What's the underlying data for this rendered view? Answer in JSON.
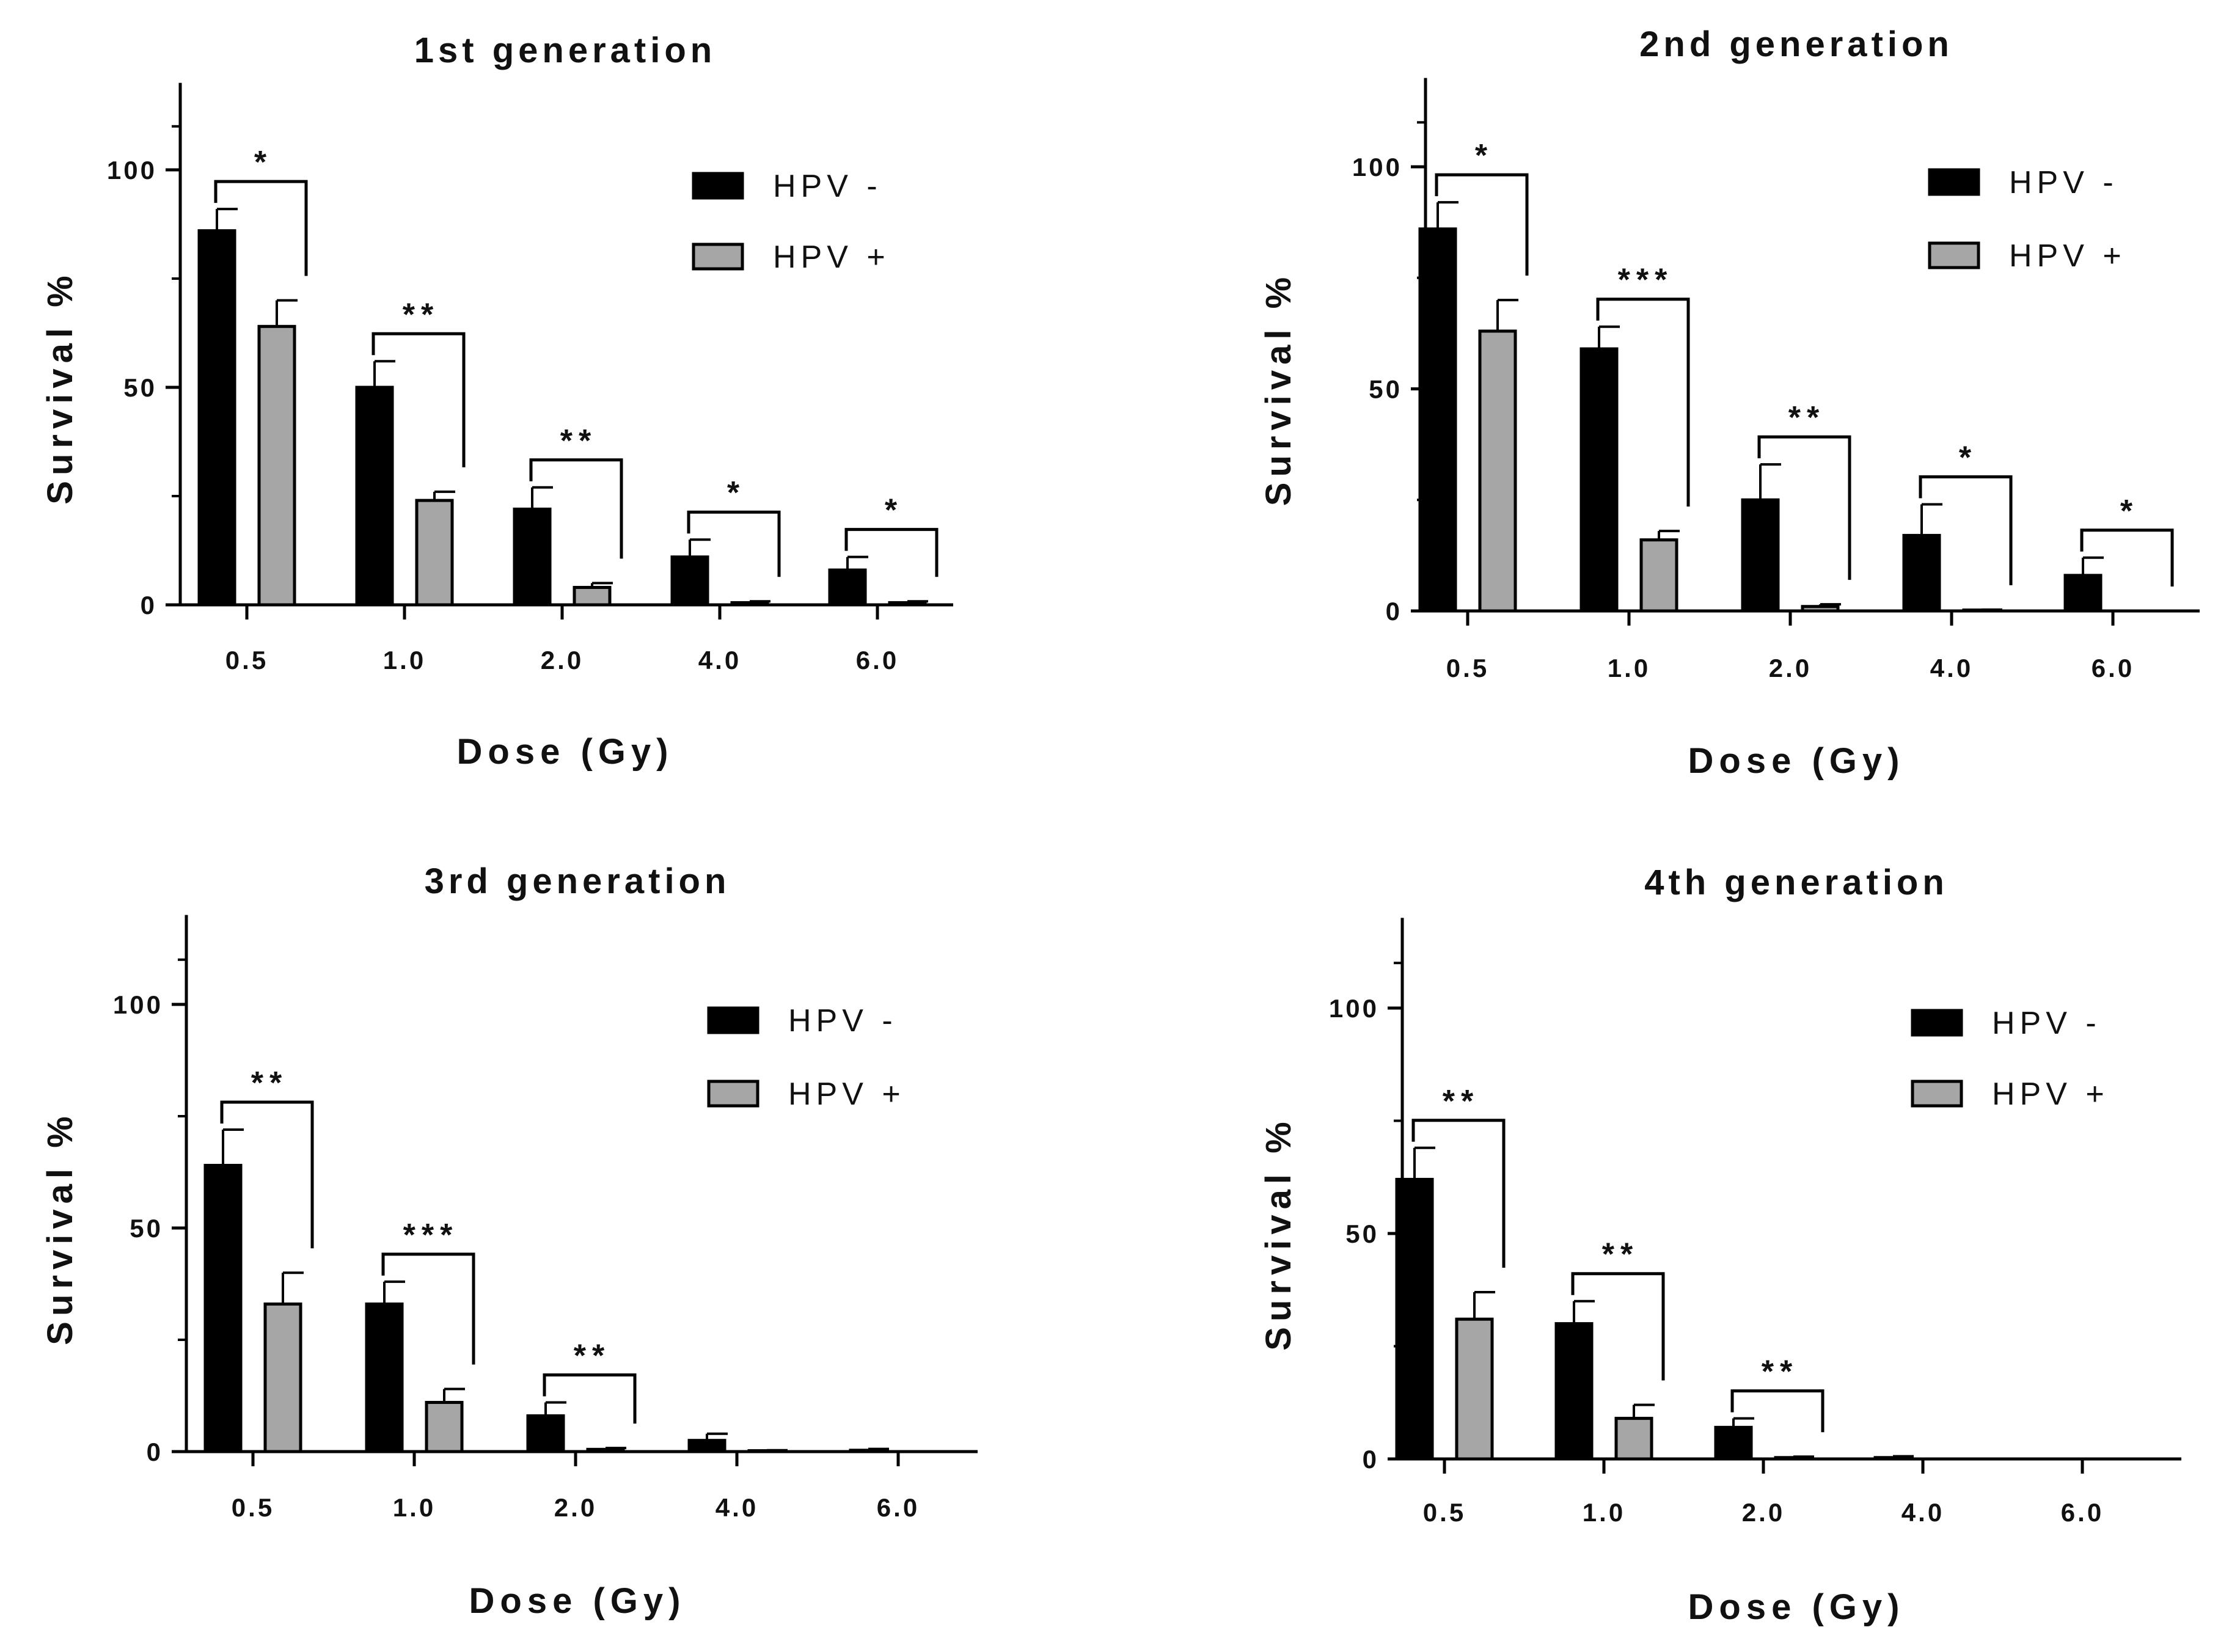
{
  "chart_data": [
    {
      "type": "bar",
      "title": "1st generation",
      "xlabel": "Dose (Gy)",
      "ylabel": "Survival %",
      "ylim": [
        0,
        120
      ],
      "yticks": [
        0,
        50,
        100
      ],
      "categories": [
        "0.5",
        "1.0",
        "2.0",
        "4.0",
        "6.0"
      ],
      "series": [
        {
          "name": "HPV -",
          "color": "#000000",
          "values": [
            86,
            50,
            22,
            11,
            8
          ],
          "errors": [
            5,
            6,
            5,
            4,
            3
          ]
        },
        {
          "name": "HPV +",
          "color": "#a6a6a6",
          "values": [
            64,
            24,
            4,
            0.5,
            0.5
          ],
          "errors": [
            6,
            2,
            1,
            0.3,
            0.3
          ]
        }
      ],
      "significance": [
        "*",
        "**",
        "**",
        "*",
        "*"
      ],
      "legend_position": "top-right"
    },
    {
      "type": "bar",
      "title": "2nd generation",
      "xlabel": "Dose (Gy)",
      "ylabel": "Survival  %",
      "ylim": [
        0,
        120
      ],
      "yticks": [
        0,
        50,
        100
      ],
      "categories": [
        "0.5",
        "1.0",
        "2.0",
        "4.0",
        "6.0"
      ],
      "series": [
        {
          "name": "HPV -",
          "color": "#000000",
          "values": [
            86,
            59,
            25,
            17,
            8
          ],
          "errors": [
            6,
            5,
            8,
            7,
            4
          ]
        },
        {
          "name": "HPV +",
          "color": "#a6a6a6",
          "values": [
            63,
            16,
            1,
            0.2,
            0
          ],
          "errors": [
            7,
            2,
            0.5,
            0.1,
            0
          ]
        }
      ],
      "significance": [
        "*",
        "***",
        "**",
        "*",
        "*"
      ],
      "legend_position": "top-right"
    },
    {
      "type": "bar",
      "title": "3rd generation",
      "xlabel": "Dose (Gy)",
      "ylabel": "Survival %",
      "ylim": [
        0,
        120
      ],
      "yticks": [
        0,
        50,
        100
      ],
      "categories": [
        "0.5",
        "1.0",
        "2.0",
        "4.0",
        "6.0"
      ],
      "series": [
        {
          "name": "HPV -",
          "color": "#000000",
          "values": [
            64,
            33,
            8,
            2.5,
            0.3
          ],
          "errors": [
            8,
            5,
            3,
            1.5,
            0.3
          ]
        },
        {
          "name": "HPV +",
          "color": "#a6a6a6",
          "values": [
            33,
            11,
            0.5,
            0.2,
            0
          ],
          "errors": [
            7,
            3,
            0.3,
            0.1,
            0
          ]
        }
      ],
      "significance": [
        "**",
        "***",
        "**",
        "",
        ""
      ],
      "legend_position": "top-right"
    },
    {
      "type": "bar",
      "title": "4th generation",
      "xlabel": "Dose (Gy)",
      "ylabel": "Survival  %",
      "ylim": [
        0,
        120
      ],
      "yticks": [
        0,
        50,
        100
      ],
      "categories": [
        "0.5",
        "1.0",
        "2.0",
        "4.0",
        "6.0"
      ],
      "series": [
        {
          "name": "HPV -",
          "color": "#000000",
          "values": [
            62,
            30,
            7,
            0.3,
            0
          ],
          "errors": [
            7,
            5,
            2,
            0.3,
            0
          ]
        },
        {
          "name": "HPV +",
          "color": "#a6a6a6",
          "values": [
            31,
            9,
            0.3,
            0,
            0
          ],
          "errors": [
            6,
            3,
            0.2,
            0,
            0
          ]
        }
      ],
      "significance": [
        "**",
        "**",
        "**",
        "",
        ""
      ],
      "legend_position": "top-right"
    }
  ]
}
